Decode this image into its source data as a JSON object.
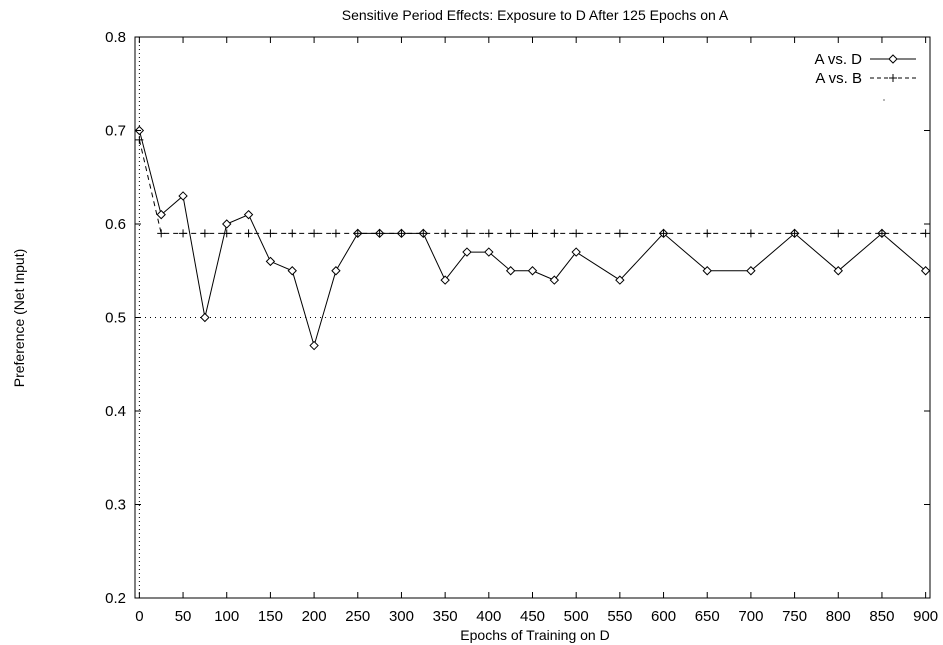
{
  "chart_data": {
    "type": "line",
    "title": "Sensitive Period Effects: Exposure to D After 125 Epochs on A",
    "xlabel": "Epochs of Training on D",
    "ylabel": "Preference (Net Input)",
    "xlim": [
      -5,
      905
    ],
    "ylim": [
      0.2,
      0.8
    ],
    "xticks": [
      0,
      50,
      100,
      150,
      200,
      250,
      300,
      350,
      400,
      450,
      500,
      550,
      600,
      650,
      700,
      750,
      800,
      850,
      900
    ],
    "yticks": [
      0.2,
      0.3,
      0.4,
      0.5,
      0.6,
      0.7,
      0.8
    ],
    "ytick_labels": [
      "0.2",
      "0.3",
      "0.4",
      "0.5",
      "0.6",
      "0.7",
      "0.8"
    ],
    "grid": false,
    "legend_position": "top-right",
    "series": [
      {
        "name": "A vs. D",
        "style": "solid",
        "marker": "diamond",
        "color": "#000000",
        "x": [
          0,
          25,
          50,
          75,
          100,
          125,
          150,
          175,
          200,
          225,
          250,
          275,
          300,
          325,
          350,
          375,
          400,
          425,
          450,
          475,
          500,
          550,
          600,
          650,
          700,
          750,
          800,
          850,
          900
        ],
        "y": [
          0.7,
          0.61,
          0.63,
          0.5,
          0.6,
          0.61,
          0.56,
          0.55,
          0.47,
          0.55,
          0.59,
          0.59,
          0.59,
          0.59,
          0.54,
          0.57,
          0.57,
          0.55,
          0.55,
          0.54,
          0.57,
          0.54,
          0.59,
          0.55,
          0.55,
          0.59,
          0.55,
          0.59,
          0.55
        ]
      },
      {
        "name": "A vs. B",
        "style": "dashed",
        "marker": "plus",
        "color": "#000000",
        "x": [
          0,
          25,
          50,
          75,
          100,
          125,
          150,
          175,
          200,
          225,
          250,
          275,
          300,
          325,
          350,
          375,
          400,
          425,
          450,
          475,
          500,
          550,
          600,
          650,
          700,
          750,
          800,
          850,
          900
        ],
        "y": [
          0.69,
          0.59,
          0.59,
          0.59,
          0.59,
          0.59,
          0.59,
          0.59,
          0.59,
          0.59,
          0.59,
          0.59,
          0.59,
          0.59,
          0.59,
          0.59,
          0.59,
          0.59,
          0.59,
          0.59,
          0.59,
          0.59,
          0.59,
          0.59,
          0.59,
          0.59,
          0.59,
          0.59,
          0.59
        ]
      }
    ],
    "reference_lines": {
      "horizontal_y": 0.5,
      "vertical_x": 0,
      "style": "dotted"
    }
  }
}
